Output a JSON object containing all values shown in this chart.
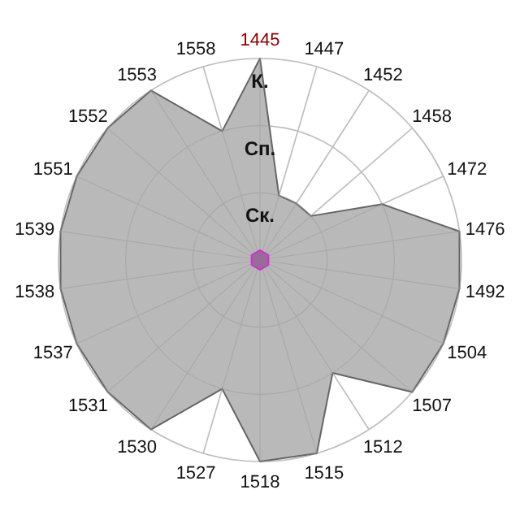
{
  "chart_data": {
    "type": "radar",
    "categories": [
      "1445",
      "1447",
      "1452",
      "1458",
      "1472",
      "1476",
      "1492",
      "1504",
      "1507",
      "1512",
      "1515",
      "1518",
      "1527",
      "1530",
      "1531",
      "1537",
      "1538",
      "1539",
      "1551",
      "1552",
      "1553",
      "1558"
    ],
    "series": [
      {
        "color": "#b9b9b9",
        "values": [
          3,
          1,
          1,
          1,
          2,
          3,
          3,
          3,
          3,
          2,
          3,
          3,
          2,
          3,
          3,
          3,
          3,
          3,
          3,
          3,
          3,
          2
        ]
      }
    ],
    "ylim": [
      0,
      3
    ],
    "yticks": [
      {
        "value": 1,
        "label": "Ск."
      },
      {
        "value": 2,
        "label": "Сп."
      },
      {
        "value": 3,
        "label": "К."
      }
    ],
    "grid": true
  }
}
